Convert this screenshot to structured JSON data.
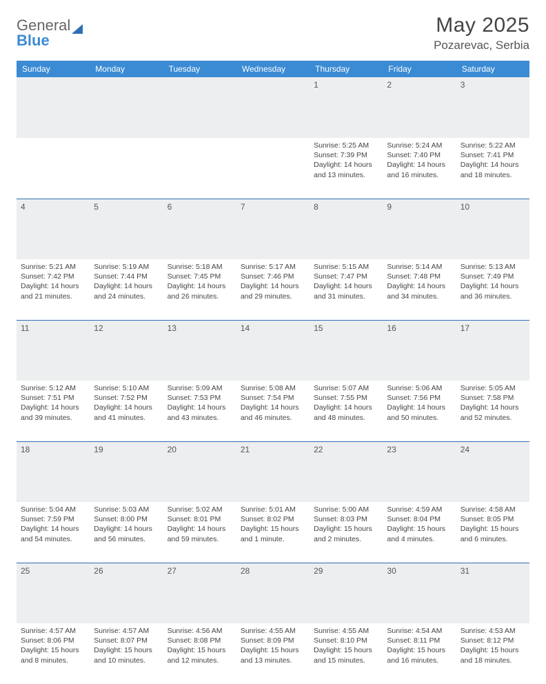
{
  "brand": {
    "word1": "General",
    "word2": "Blue"
  },
  "title": {
    "month": "May 2025",
    "location": "Pozarevac, Serbia"
  },
  "colors": {
    "header_bg": "#3b8bd4",
    "border": "#2d6fb5",
    "daynum_bg": "#eceeef",
    "text": "#444444",
    "page_bg": "#ffffff"
  },
  "day_names": [
    "Sunday",
    "Monday",
    "Tuesday",
    "Wednesday",
    "Thursday",
    "Friday",
    "Saturday"
  ],
  "weeks": [
    {
      "nums": [
        "",
        "",
        "",
        "",
        "1",
        "2",
        "3"
      ],
      "cells": [
        null,
        null,
        null,
        null,
        {
          "sunrise": "5:25 AM",
          "sunset": "7:39 PM",
          "daylight": "14 hours and 13 minutes."
        },
        {
          "sunrise": "5:24 AM",
          "sunset": "7:40 PM",
          "daylight": "14 hours and 16 minutes."
        },
        {
          "sunrise": "5:22 AM",
          "sunset": "7:41 PM",
          "daylight": "14 hours and 18 minutes."
        }
      ]
    },
    {
      "nums": [
        "4",
        "5",
        "6",
        "7",
        "8",
        "9",
        "10"
      ],
      "cells": [
        {
          "sunrise": "5:21 AM",
          "sunset": "7:42 PM",
          "daylight": "14 hours and 21 minutes."
        },
        {
          "sunrise": "5:19 AM",
          "sunset": "7:44 PM",
          "daylight": "14 hours and 24 minutes."
        },
        {
          "sunrise": "5:18 AM",
          "sunset": "7:45 PM",
          "daylight": "14 hours and 26 minutes."
        },
        {
          "sunrise": "5:17 AM",
          "sunset": "7:46 PM",
          "daylight": "14 hours and 29 minutes."
        },
        {
          "sunrise": "5:15 AM",
          "sunset": "7:47 PM",
          "daylight": "14 hours and 31 minutes."
        },
        {
          "sunrise": "5:14 AM",
          "sunset": "7:48 PM",
          "daylight": "14 hours and 34 minutes."
        },
        {
          "sunrise": "5:13 AM",
          "sunset": "7:49 PM",
          "daylight": "14 hours and 36 minutes."
        }
      ]
    },
    {
      "nums": [
        "11",
        "12",
        "13",
        "14",
        "15",
        "16",
        "17"
      ],
      "cells": [
        {
          "sunrise": "5:12 AM",
          "sunset": "7:51 PM",
          "daylight": "14 hours and 39 minutes."
        },
        {
          "sunrise": "5:10 AM",
          "sunset": "7:52 PM",
          "daylight": "14 hours and 41 minutes."
        },
        {
          "sunrise": "5:09 AM",
          "sunset": "7:53 PM",
          "daylight": "14 hours and 43 minutes."
        },
        {
          "sunrise": "5:08 AM",
          "sunset": "7:54 PM",
          "daylight": "14 hours and 46 minutes."
        },
        {
          "sunrise": "5:07 AM",
          "sunset": "7:55 PM",
          "daylight": "14 hours and 48 minutes."
        },
        {
          "sunrise": "5:06 AM",
          "sunset": "7:56 PM",
          "daylight": "14 hours and 50 minutes."
        },
        {
          "sunrise": "5:05 AM",
          "sunset": "7:58 PM",
          "daylight": "14 hours and 52 minutes."
        }
      ]
    },
    {
      "nums": [
        "18",
        "19",
        "20",
        "21",
        "22",
        "23",
        "24"
      ],
      "cells": [
        {
          "sunrise": "5:04 AM",
          "sunset": "7:59 PM",
          "daylight": "14 hours and 54 minutes."
        },
        {
          "sunrise": "5:03 AM",
          "sunset": "8:00 PM",
          "daylight": "14 hours and 56 minutes."
        },
        {
          "sunrise": "5:02 AM",
          "sunset": "8:01 PM",
          "daylight": "14 hours and 59 minutes."
        },
        {
          "sunrise": "5:01 AM",
          "sunset": "8:02 PM",
          "daylight": "15 hours and 1 minute."
        },
        {
          "sunrise": "5:00 AM",
          "sunset": "8:03 PM",
          "daylight": "15 hours and 2 minutes."
        },
        {
          "sunrise": "4:59 AM",
          "sunset": "8:04 PM",
          "daylight": "15 hours and 4 minutes."
        },
        {
          "sunrise": "4:58 AM",
          "sunset": "8:05 PM",
          "daylight": "15 hours and 6 minutes."
        }
      ]
    },
    {
      "nums": [
        "25",
        "26",
        "27",
        "28",
        "29",
        "30",
        "31"
      ],
      "cells": [
        {
          "sunrise": "4:57 AM",
          "sunset": "8:06 PM",
          "daylight": "15 hours and 8 minutes."
        },
        {
          "sunrise": "4:57 AM",
          "sunset": "8:07 PM",
          "daylight": "15 hours and 10 minutes."
        },
        {
          "sunrise": "4:56 AM",
          "sunset": "8:08 PM",
          "daylight": "15 hours and 12 minutes."
        },
        {
          "sunrise": "4:55 AM",
          "sunset": "8:09 PM",
          "daylight": "15 hours and 13 minutes."
        },
        {
          "sunrise": "4:55 AM",
          "sunset": "8:10 PM",
          "daylight": "15 hours and 15 minutes."
        },
        {
          "sunrise": "4:54 AM",
          "sunset": "8:11 PM",
          "daylight": "15 hours and 16 minutes."
        },
        {
          "sunrise": "4:53 AM",
          "sunset": "8:12 PM",
          "daylight": "15 hours and 18 minutes."
        }
      ]
    }
  ],
  "labels": {
    "sunrise_prefix": "Sunrise: ",
    "sunset_prefix": "Sunset: ",
    "daylight_prefix": "Daylight: "
  }
}
